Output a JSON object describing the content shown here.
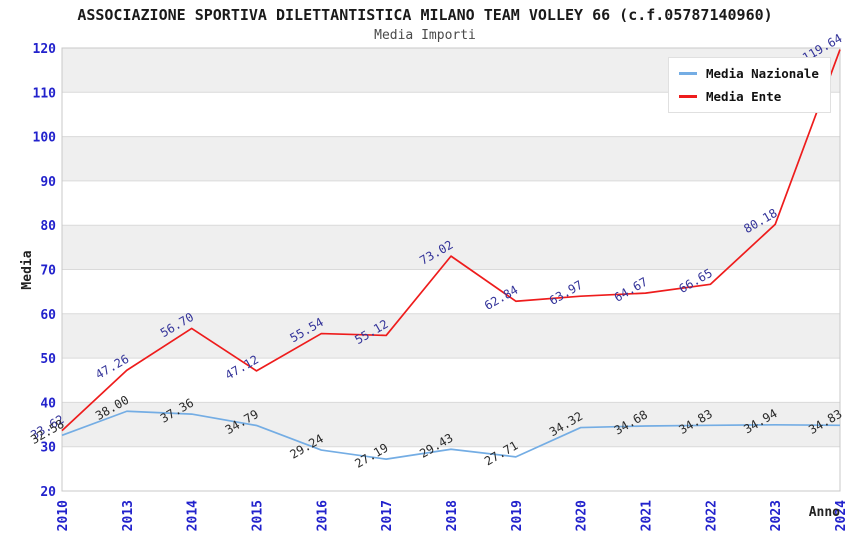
{
  "header": {
    "title": "ASSOCIAZIONE SPORTIVA DILETTANTISTICA MILANO TEAM VOLLEY 66 (c.f.05787140960)",
    "subtitle": "Media Importi"
  },
  "legend": {
    "position": "top-right",
    "items": [
      {
        "label": "Media Nazionale",
        "color": "#74ade4"
      },
      {
        "label": "Media Ente",
        "color": "#ee1c1c"
      }
    ]
  },
  "axes": {
    "y_title": "Media",
    "x_title": "Anno",
    "y_ticks": [
      20,
      30,
      40,
      50,
      60,
      70,
      80,
      90,
      100,
      110,
      120
    ],
    "tick_color": "#2222cc"
  },
  "chart_data": {
    "type": "line",
    "title": "Media Importi",
    "xlabel": "Anno",
    "ylabel": "Media",
    "ylim": [
      20,
      120
    ],
    "grid": true,
    "legend_position": "top-right",
    "categories": [
      "2010",
      "2013",
      "2014",
      "2015",
      "2016",
      "2017",
      "2018",
      "2019",
      "2020",
      "2021",
      "2022",
      "2023",
      "2024"
    ],
    "series": [
      {
        "name": "Media Nazionale",
        "color": "#74ade4",
        "label_color": "#2a2a2a",
        "values": [
          32.58,
          38.0,
          37.36,
          34.79,
          29.24,
          27.19,
          29.43,
          27.71,
          34.32,
          34.68,
          34.83,
          34.94,
          34.83
        ]
      },
      {
        "name": "Media Ente",
        "color": "#ee1c1c",
        "label_color": "#333399",
        "values": [
          33.62,
          47.26,
          56.7,
          47.12,
          55.54,
          55.12,
          73.02,
          62.84,
          63.97,
          64.67,
          66.65,
          80.18,
          119.64
        ]
      }
    ]
  },
  "style": {
    "band_color": "#efefef",
    "grid_color": "#dadada",
    "border_color": "#c8c8c8"
  }
}
